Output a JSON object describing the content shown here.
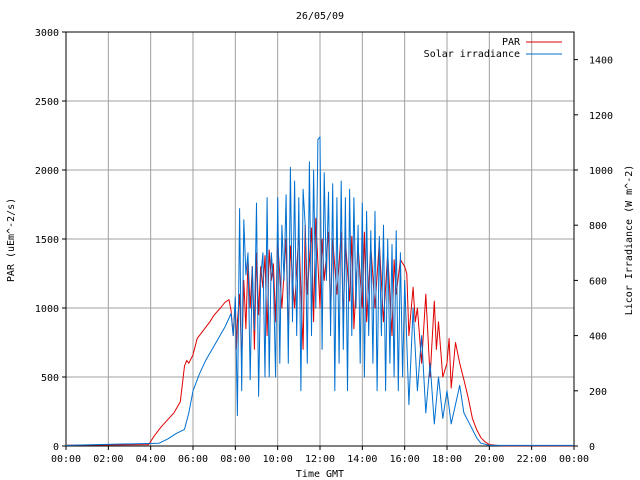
{
  "chart_data": {
    "type": "line",
    "title": "26/05/09",
    "xlabel": "Time GMT",
    "ylabel_left": "PAR (uEm^-2/s)",
    "ylabel_right": "Licor Irradiance (W m^-2)",
    "xlim": [
      0,
      24
    ],
    "ylim_left": [
      0,
      3000
    ],
    "ylim_right": [
      0,
      1500
    ],
    "x_ticks": [
      "00:00",
      "02:00",
      "04:00",
      "06:00",
      "08:00",
      "10:00",
      "12:00",
      "14:00",
      "16:00",
      "18:00",
      "20:00",
      "22:00",
      "00:00"
    ],
    "y_ticks_left": [
      "0",
      "500",
      "1000",
      "1500",
      "2000",
      "2500",
      "3000"
    ],
    "y_ticks_right": [
      "0",
      "200",
      "400",
      "600",
      "800",
      "1000",
      "1200",
      "1400"
    ],
    "grid": true,
    "legend_position": "top-right",
    "colors": {
      "PAR": "#e00000",
      "Solar irradiance": "#0070d0"
    },
    "series": [
      {
        "name": "PAR",
        "axis": "left",
        "x": [
          0,
          3.9,
          4.2,
          4.5,
          4.8,
          5.1,
          5.4,
          5.6,
          5.7,
          5.8,
          6.0,
          6.2,
          6.5,
          6.8,
          7.0,
          7.3,
          7.5,
          7.7,
          7.8,
          7.9,
          8.0,
          8.05,
          8.1,
          8.2,
          8.3,
          8.4,
          8.5,
          8.6,
          8.7,
          8.8,
          8.9,
          9.0,
          9.1,
          9.2,
          9.3,
          9.4,
          9.5,
          9.6,
          9.7,
          9.8,
          9.9,
          10.0,
          10.2,
          10.4,
          10.5,
          10.6,
          10.8,
          11.0,
          11.2,
          11.3,
          11.4,
          11.6,
          11.7,
          11.8,
          12.0,
          12.1,
          12.2,
          12.4,
          12.5,
          12.6,
          12.8,
          13.0,
          13.1,
          13.2,
          13.4,
          13.5,
          13.6,
          13.8,
          14.0,
          14.1,
          14.2,
          14.4,
          14.6,
          14.8,
          15.0,
          15.2,
          15.4,
          15.5,
          15.6,
          15.8,
          16.0,
          16.1,
          16.2,
          16.4,
          16.5,
          16.6,
          16.8,
          17.0,
          17.2,
          17.4,
          17.5,
          17.6,
          17.8,
          18.0,
          18.1,
          18.2,
          18.4,
          18.6,
          18.8,
          19.0,
          19.2,
          19.4,
          19.6,
          19.8,
          20.0,
          20.3,
          20.6,
          24
        ],
        "values": [
          5,
          10,
          80,
          140,
          190,
          240,
          320,
          580,
          620,
          600,
          660,
          780,
          840,
          900,
          950,
          1000,
          1040,
          1060,
          980,
          800,
          1050,
          700,
          900,
          1100,
          600,
          1200,
          850,
          1350,
          1000,
          1300,
          700,
          1400,
          950,
          1300,
          1150,
          1380,
          800,
          1420,
          1200,
          1320,
          900,
          1480,
          1000,
          1500,
          800,
          1450,
          1000,
          1550,
          700,
          1600,
          1100,
          1580,
          900,
          1650,
          1000,
          1500,
          1200,
          1550,
          950,
          1500,
          1100,
          1550,
          900,
          1500,
          1050,
          1520,
          850,
          1450,
          1000,
          1550,
          900,
          1450,
          1000,
          1480,
          900,
          1400,
          800,
          1350,
          1100,
          1350,
          1300,
          1250,
          800,
          1150,
          900,
          1000,
          600,
          1100,
          500,
          1050,
          700,
          900,
          500,
          600,
          780,
          420,
          750,
          600,
          480,
          350,
          200,
          120,
          60,
          30,
          10,
          5,
          2,
          2
        ]
      },
      {
        "name": "Solar irradiance",
        "axis": "right",
        "x": [
          0,
          4.4,
          4.8,
          5.2,
          5.6,
          5.8,
          6.0,
          6.3,
          6.6,
          6.9,
          7.2,
          7.5,
          7.8,
          7.9,
          8.0,
          8.1,
          8.2,
          8.3,
          8.4,
          8.5,
          8.6,
          8.7,
          8.8,
          8.9,
          9.0,
          9.1,
          9.2,
          9.3,
          9.4,
          9.5,
          9.6,
          9.7,
          9.8,
          9.9,
          10.0,
          10.1,
          10.2,
          10.3,
          10.4,
          10.5,
          10.6,
          10.7,
          10.8,
          10.9,
          11.0,
          11.1,
          11.2,
          11.3,
          11.4,
          11.5,
          11.6,
          11.7,
          11.8,
          11.9,
          12.0,
          12.1,
          12.2,
          12.3,
          12.4,
          12.5,
          12.6,
          12.7,
          12.8,
          12.9,
          13.0,
          13.1,
          13.2,
          13.3,
          13.4,
          13.5,
          13.6,
          13.7,
          13.8,
          13.9,
          14.0,
          14.1,
          14.2,
          14.3,
          14.4,
          14.5,
          14.6,
          14.7,
          14.8,
          14.9,
          15.0,
          15.1,
          15.2,
          15.3,
          15.4,
          15.5,
          15.6,
          15.7,
          15.8,
          15.9,
          16.0,
          16.2,
          16.4,
          16.6,
          16.8,
          17.0,
          17.2,
          17.4,
          17.6,
          17.8,
          18.0,
          18.2,
          18.4,
          18.6,
          18.8,
          19.0,
          19.2,
          19.4,
          19.6,
          20.0,
          24
        ],
        "values": [
          2,
          10,
          25,
          45,
          60,
          120,
          200,
          260,
          310,
          350,
          390,
          430,
          480,
          400,
          540,
          110,
          860,
          200,
          820,
          620,
          700,
          240,
          650,
          420,
          880,
          180,
          610,
          700,
          250,
          900,
          250,
          700,
          600,
          250,
          900,
          300,
          800,
          600,
          910,
          300,
          1010,
          450,
          960,
          400,
          900,
          200,
          930,
          800,
          300,
          1030,
          400,
          1000,
          500,
          1110,
          1120,
          350,
          990,
          600,
          920,
          400,
          950,
          200,
          900,
          300,
          960,
          350,
          900,
          200,
          930,
          400,
          900,
          500,
          800,
          300,
          880,
          250,
          850,
          400,
          780,
          300,
          850,
          200,
          760,
          400,
          800,
          200,
          750,
          300,
          730,
          250,
          780,
          200,
          700,
          250,
          600,
          150,
          500,
          200,
          400,
          120,
          300,
          80,
          250,
          100,
          200,
          80,
          150,
          220,
          120,
          90,
          60,
          30,
          10,
          2,
          2
        ]
      }
    ]
  }
}
